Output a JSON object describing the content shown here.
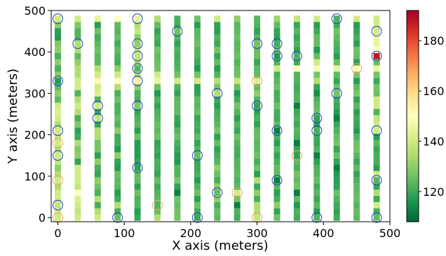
{
  "chart_data": {
    "type": "scatter",
    "title": "",
    "xlabel": "X axis (meters)",
    "ylabel": "Y axis (meters)",
    "xlim": [
      -10,
      500
    ],
    "ylim": [
      -10,
      500
    ],
    "xticks": [
      0,
      100,
      200,
      300,
      400,
      500
    ],
    "yticks": [
      0,
      100,
      200,
      300,
      400,
      500
    ],
    "grid": false,
    "grid_x": [
      0,
      30,
      60,
      90,
      120,
      150,
      180,
      210,
      240,
      270,
      300,
      330,
      360,
      390,
      420,
      450,
      480
    ],
    "grid_y": [
      0,
      15,
      30,
      45,
      60,
      75,
      90,
      105,
      120,
      135,
      150,
      165,
      180,
      195,
      210,
      225,
      240,
      255,
      270,
      285,
      300,
      315,
      330,
      345,
      360,
      375,
      390,
      405,
      420,
      435,
      450,
      465,
      480
    ],
    "colorbar": {
      "min": 108,
      "max": 192,
      "ticks": [
        120,
        140,
        160,
        180
      ],
      "colormap": "RdYlGn_r",
      "stops": [
        "#006837",
        "#1a9850",
        "#66bd63",
        "#a6d96a",
        "#d9ef8b",
        "#ffffbf",
        "#fee08b",
        "#fdae61",
        "#f46d43",
        "#d73027",
        "#a50026"
      ]
    },
    "default_value": 122,
    "value_overrides": [
      {
        "x": 0,
        "y": 480,
        "v": 140
      },
      {
        "x": 30,
        "y": 480,
        "v": 140
      },
      {
        "x": 60,
        "y": 480,
        "v": 144
      },
      {
        "x": 90,
        "y": 480,
        "v": 150
      },
      {
        "x": 120,
        "y": 480,
        "v": 145
      },
      {
        "x": 150,
        "y": 480,
        "v": 135
      },
      {
        "x": 240,
        "y": 480,
        "v": 140
      },
      {
        "x": 270,
        "y": 480,
        "v": 130
      },
      {
        "x": 330,
        "y": 480,
        "v": 132
      },
      {
        "x": 360,
        "y": 480,
        "v": 138
      },
      {
        "x": 390,
        "y": 480,
        "v": 140
      },
      {
        "x": 450,
        "y": 480,
        "v": 140
      },
      {
        "x": 480,
        "y": 480,
        "v": 140
      },
      {
        "x": 0,
        "y": 465,
        "v": 130
      },
      {
        "x": 30,
        "y": 465,
        "v": 128
      },
      {
        "x": 120,
        "y": 465,
        "v": 135
      },
      {
        "x": 480,
        "y": 465,
        "v": 140
      },
      {
        "x": 120,
        "y": 450,
        "v": 138
      },
      {
        "x": 480,
        "y": 450,
        "v": 140
      },
      {
        "x": 480,
        "y": 435,
        "v": 145
      },
      {
        "x": 120,
        "y": 435,
        "v": 130
      },
      {
        "x": 30,
        "y": 420,
        "v": 135
      },
      {
        "x": 0,
        "y": 420,
        "v": 128
      },
      {
        "x": 120,
        "y": 420,
        "v": 130
      },
      {
        "x": 480,
        "y": 420,
        "v": 145
      },
      {
        "x": 0,
        "y": 405,
        "v": 130
      },
      {
        "x": 30,
        "y": 405,
        "v": 135
      },
      {
        "x": 120,
        "y": 405,
        "v": 138
      },
      {
        "x": 480,
        "y": 405,
        "v": 150
      },
      {
        "x": 120,
        "y": 390,
        "v": 138
      },
      {
        "x": 480,
        "y": 390,
        "v": 188
      },
      {
        "x": 0,
        "y": 375,
        "v": 130
      },
      {
        "x": 30,
        "y": 375,
        "v": 130
      },
      {
        "x": 120,
        "y": 375,
        "v": 135
      },
      {
        "x": 390,
        "y": 375,
        "v": 140
      },
      {
        "x": 30,
        "y": 360,
        "v": 135
      },
      {
        "x": 60,
        "y": 360,
        "v": 135
      },
      {
        "x": 90,
        "y": 360,
        "v": 130
      },
      {
        "x": 330,
        "y": 360,
        "v": 140
      },
      {
        "x": 360,
        "y": 360,
        "v": 150
      },
      {
        "x": 390,
        "y": 360,
        "v": 148
      },
      {
        "x": 420,
        "y": 360,
        "v": 145
      },
      {
        "x": 450,
        "y": 360,
        "v": 152
      },
      {
        "x": 480,
        "y": 360,
        "v": 145
      },
      {
        "x": 0,
        "y": 345,
        "v": 130
      },
      {
        "x": 30,
        "y": 345,
        "v": 135
      },
      {
        "x": 60,
        "y": 345,
        "v": 140
      },
      {
        "x": 90,
        "y": 345,
        "v": 140
      },
      {
        "x": 120,
        "y": 345,
        "v": 135
      },
      {
        "x": 150,
        "y": 345,
        "v": 140
      },
      {
        "x": 30,
        "y": 330,
        "v": 140
      },
      {
        "x": 60,
        "y": 330,
        "v": 152
      },
      {
        "x": 90,
        "y": 330,
        "v": 150
      },
      {
        "x": 120,
        "y": 330,
        "v": 155
      },
      {
        "x": 150,
        "y": 330,
        "v": 145
      },
      {
        "x": 180,
        "y": 330,
        "v": 140
      },
      {
        "x": 210,
        "y": 330,
        "v": 140
      },
      {
        "x": 240,
        "y": 330,
        "v": 135
      },
      {
        "x": 270,
        "y": 330,
        "v": 138
      },
      {
        "x": 300,
        "y": 330,
        "v": 142
      },
      {
        "x": 390,
        "y": 330,
        "v": 135
      },
      {
        "x": 30,
        "y": 315,
        "v": 140
      },
      {
        "x": 60,
        "y": 315,
        "v": 140
      },
      {
        "x": 90,
        "y": 315,
        "v": 135
      },
      {
        "x": 120,
        "y": 315,
        "v": 130
      },
      {
        "x": 60,
        "y": 300,
        "v": 142
      },
      {
        "x": 0,
        "y": 300,
        "v": 130
      },
      {
        "x": 300,
        "y": 300,
        "v": 130
      },
      {
        "x": 240,
        "y": 300,
        "v": 135
      },
      {
        "x": 30,
        "y": 285,
        "v": 135
      },
      {
        "x": 480,
        "y": 285,
        "v": 140
      },
      {
        "x": 0,
        "y": 270,
        "v": 140
      },
      {
        "x": 30,
        "y": 270,
        "v": 140
      },
      {
        "x": 60,
        "y": 270,
        "v": 140
      },
      {
        "x": 120,
        "y": 270,
        "v": 128
      },
      {
        "x": 480,
        "y": 270,
        "v": 140
      },
      {
        "x": 0,
        "y": 255,
        "v": 142
      },
      {
        "x": 30,
        "y": 255,
        "v": 135
      },
      {
        "x": 0,
        "y": 240,
        "v": 140
      },
      {
        "x": 60,
        "y": 240,
        "v": 138
      },
      {
        "x": 480,
        "y": 240,
        "v": 138
      },
      {
        "x": 0,
        "y": 225,
        "v": 135
      },
      {
        "x": 30,
        "y": 225,
        "v": 128
      },
      {
        "x": 480,
        "y": 225,
        "v": 140
      },
      {
        "x": 0,
        "y": 210,
        "v": 140
      },
      {
        "x": 60,
        "y": 210,
        "v": 135
      },
      {
        "x": 90,
        "y": 210,
        "v": 130
      },
      {
        "x": 480,
        "y": 210,
        "v": 140
      },
      {
        "x": 0,
        "y": 195,
        "v": 138
      },
      {
        "x": 60,
        "y": 195,
        "v": 135
      },
      {
        "x": 0,
        "y": 180,
        "v": 140
      },
      {
        "x": 30,
        "y": 180,
        "v": 135
      },
      {
        "x": 0,
        "y": 165,
        "v": 135
      },
      {
        "x": 30,
        "y": 165,
        "v": 128
      },
      {
        "x": 0,
        "y": 150,
        "v": 140
      },
      {
        "x": 30,
        "y": 150,
        "v": 130
      },
      {
        "x": 90,
        "y": 150,
        "v": 130
      },
      {
        "x": 0,
        "y": 135,
        "v": 138
      },
      {
        "x": 60,
        "y": 135,
        "v": 130
      },
      {
        "x": 0,
        "y": 120,
        "v": 130
      },
      {
        "x": 30,
        "y": 120,
        "v": 140
      },
      {
        "x": 240,
        "y": 120,
        "v": 130
      },
      {
        "x": 0,
        "y": 105,
        "v": 135
      },
      {
        "x": 30,
        "y": 105,
        "v": 140
      },
      {
        "x": 480,
        "y": 105,
        "v": 140
      },
      {
        "x": 0,
        "y": 90,
        "v": 140
      },
      {
        "x": 30,
        "y": 90,
        "v": 140
      },
      {
        "x": 60,
        "y": 90,
        "v": 130
      },
      {
        "x": 300,
        "y": 90,
        "v": 135
      },
      {
        "x": 0,
        "y": 75,
        "v": 135
      },
      {
        "x": 30,
        "y": 75,
        "v": 138
      },
      {
        "x": 240,
        "y": 75,
        "v": 130
      },
      {
        "x": 0,
        "y": 60,
        "v": 140
      },
      {
        "x": 30,
        "y": 60,
        "v": 150
      },
      {
        "x": 270,
        "y": 60,
        "v": 140
      },
      {
        "x": 300,
        "y": 60,
        "v": 130
      },
      {
        "x": 480,
        "y": 60,
        "v": 135
      },
      {
        "x": 0,
        "y": 45,
        "v": 140
      },
      {
        "x": 30,
        "y": 45,
        "v": 142
      },
      {
        "x": 60,
        "y": 45,
        "v": 135
      },
      {
        "x": 240,
        "y": 45,
        "v": 130
      },
      {
        "x": 0,
        "y": 30,
        "v": 138
      },
      {
        "x": 30,
        "y": 30,
        "v": 140
      },
      {
        "x": 90,
        "y": 30,
        "v": 135
      },
      {
        "x": 300,
        "y": 30,
        "v": 135
      },
      {
        "x": 330,
        "y": 30,
        "v": 130
      },
      {
        "x": 480,
        "y": 30,
        "v": 140
      },
      {
        "x": 0,
        "y": 15,
        "v": 140
      },
      {
        "x": 30,
        "y": 15,
        "v": 138
      },
      {
        "x": 60,
        "y": 15,
        "v": 135
      },
      {
        "x": 300,
        "y": 15,
        "v": 135
      },
      {
        "x": 0,
        "y": 0,
        "v": 140
      },
      {
        "x": 30,
        "y": 0,
        "v": 140
      },
      {
        "x": 60,
        "y": 0,
        "v": 140
      },
      {
        "x": 150,
        "y": 0,
        "v": 135
      },
      {
        "x": 300,
        "y": 0,
        "v": 138
      },
      {
        "x": 390,
        "y": 300,
        "v": 115
      },
      {
        "x": 360,
        "y": 270,
        "v": 112
      },
      {
        "x": 420,
        "y": 240,
        "v": 112
      },
      {
        "x": 330,
        "y": 210,
        "v": 112
      },
      {
        "x": 360,
        "y": 180,
        "v": 112
      },
      {
        "x": 390,
        "y": 150,
        "v": 112
      },
      {
        "x": 420,
        "y": 120,
        "v": 112
      },
      {
        "x": 330,
        "y": 90,
        "v": 112
      },
      {
        "x": 360,
        "y": 60,
        "v": 112
      },
      {
        "x": 270,
        "y": 30,
        "v": 112
      },
      {
        "x": 180,
        "y": 60,
        "v": 112
      }
    ],
    "circles": [
      {
        "x": 0,
        "y": 480,
        "c": "blue"
      },
      {
        "x": 120,
        "y": 480,
        "c": "blue"
      },
      {
        "x": 180,
        "y": 450,
        "c": "blue"
      },
      {
        "x": 420,
        "y": 480,
        "c": "blue"
      },
      {
        "x": 480,
        "y": 450,
        "c": "blue"
      },
      {
        "x": 30,
        "y": 420,
        "c": "blue"
      },
      {
        "x": 120,
        "y": 420,
        "c": "blue"
      },
      {
        "x": 300,
        "y": 420,
        "c": "blue"
      },
      {
        "x": 330,
        "y": 420,
        "c": "blue"
      },
      {
        "x": 120,
        "y": 390,
        "c": "blue"
      },
      {
        "x": 330,
        "y": 390,
        "c": "blue"
      },
      {
        "x": 360,
        "y": 390,
        "c": "blue"
      },
      {
        "x": 480,
        "y": 390,
        "c": "blue"
      },
      {
        "x": 120,
        "y": 360,
        "c": "blue"
      },
      {
        "x": 450,
        "y": 360,
        "c": "orange"
      },
      {
        "x": 0,
        "y": 330,
        "c": "blue"
      },
      {
        "x": 120,
        "y": 330,
        "c": "blue"
      },
      {
        "x": 300,
        "y": 330,
        "c": "orange"
      },
      {
        "x": 240,
        "y": 300,
        "c": "blue"
      },
      {
        "x": 420,
        "y": 300,
        "c": "blue"
      },
      {
        "x": 60,
        "y": 270,
        "c": "blue"
      },
      {
        "x": 120,
        "y": 270,
        "c": "blue"
      },
      {
        "x": 300,
        "y": 270,
        "c": "blue"
      },
      {
        "x": 60,
        "y": 240,
        "c": "blue"
      },
      {
        "x": 390,
        "y": 240,
        "c": "blue"
      },
      {
        "x": 0,
        "y": 210,
        "c": "blue"
      },
      {
        "x": 330,
        "y": 210,
        "c": "blue"
      },
      {
        "x": 390,
        "y": 210,
        "c": "blue"
      },
      {
        "x": 480,
        "y": 210,
        "c": "blue"
      },
      {
        "x": 0,
        "y": 180,
        "c": "orange"
      },
      {
        "x": 0,
        "y": 150,
        "c": "blue"
      },
      {
        "x": 210,
        "y": 150,
        "c": "blue"
      },
      {
        "x": 360,
        "y": 150,
        "c": "orange"
      },
      {
        "x": 120,
        "y": 120,
        "c": "blue"
      },
      {
        "x": 0,
        "y": 90,
        "c": "orange"
      },
      {
        "x": 330,
        "y": 90,
        "c": "blue"
      },
      {
        "x": 480,
        "y": 90,
        "c": "blue"
      },
      {
        "x": 240,
        "y": 60,
        "c": "blue"
      },
      {
        "x": 270,
        "y": 60,
        "c": "orange"
      },
      {
        "x": 0,
        "y": 30,
        "c": "blue"
      },
      {
        "x": 150,
        "y": 30,
        "c": "orange"
      },
      {
        "x": 0,
        "y": 0,
        "c": "orange"
      },
      {
        "x": 90,
        "y": 0,
        "c": "blue"
      },
      {
        "x": 210,
        "y": 0,
        "c": "blue"
      },
      {
        "x": 300,
        "y": 0,
        "c": "orange"
      },
      {
        "x": 390,
        "y": 0,
        "c": "blue"
      },
      {
        "x": 480,
        "y": 0,
        "c": "blue"
      }
    ],
    "circle_colors": {
      "blue": "#1f3fbf",
      "orange": "#f0a060"
    }
  }
}
